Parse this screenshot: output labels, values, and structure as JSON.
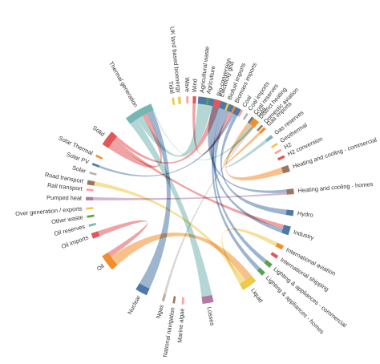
{
  "chart_data": {
    "type": "chord",
    "nodes": [
      {
        "name": "Electricity grid",
        "color": "#4e79a7",
        "angle": 17.0,
        "size": 40.0
      },
      {
        "name": "Gas",
        "color": "#f28e2b",
        "angle": 39.0,
        "size": 8.0
      },
      {
        "name": "Gas imports",
        "color": "#f28e2b",
        "angle": 46.0,
        "size": 2.5
      },
      {
        "name": "Gas reserves",
        "color": "#76b7b2",
        "angle": 52.0,
        "size": 3.0
      },
      {
        "name": "Geothermal",
        "color": "#edc948",
        "angle": 57.0,
        "size": 1.5
      },
      {
        "name": "H2",
        "color": "#ff9da7",
        "angle": 61.0,
        "size": 1.5
      },
      {
        "name": "H2 conversion",
        "color": "#e15759",
        "angle": 65.0,
        "size": 2.5
      },
      {
        "name": "Heating and cooling - commercial",
        "color": "#9c755f",
        "angle": 72.0,
        "size": 6.0
      },
      {
        "name": "Heating and cooling - homes",
        "color": "#9c755f",
        "angle": 85.0,
        "size": 5.0
      },
      {
        "name": "Hydro",
        "color": "#4e79a7",
        "angle": 97.0,
        "size": 5.0
      },
      {
        "name": "Industry",
        "color": "#4e79a7",
        "angle": 107.0,
        "size": 8.0
      },
      {
        "name": "International aviation",
        "color": "#f28e2b",
        "angle": 117.0,
        "size": 4.0
      },
      {
        "name": "International shipping",
        "color": "#e15759",
        "angle": 123.0,
        "size": 3.0
      },
      {
        "name": "Lighting & appliances - commercial",
        "color": "#59a14f",
        "angle": 129.0,
        "size": 4.0
      },
      {
        "name": "Lighting & appliances - homes",
        "color": "#59a14f",
        "angle": 135.0,
        "size": 4.0
      },
      {
        "name": "Liquid",
        "color": "#edc948",
        "angle": 145.0,
        "size": 14.0
      },
      {
        "name": "Losses",
        "color": "#b07aa1",
        "angle": 170.0,
        "size": 10.0
      },
      {
        "name": "Marine algae",
        "color": "#ff9da7",
        "angle": 184.0,
        "size": 1.0
      },
      {
        "name": "National navigation",
        "color": "#9c755f",
        "angle": 189.0,
        "size": 1.0
      },
      {
        "name": "Ngas",
        "color": "#bab0ac",
        "angle": 195.0,
        "size": 2.5
      },
      {
        "name": "Nuclear",
        "color": "#4e79a7",
        "angle": 208.0,
        "size": 11.0
      },
      {
        "name": "Oil",
        "color": "#f28e2b",
        "angle": 233.0,
        "size": 15.0
      },
      {
        "name": "Oil imports",
        "color": "#e15759",
        "angle": 250.0,
        "size": 5.0
      },
      {
        "name": "Oil reserves",
        "color": "#76b7b2",
        "angle": 256.0,
        "size": 2.0
      },
      {
        "name": "Other waste",
        "color": "#59a14f",
        "angle": 261.0,
        "size": 2.0
      },
      {
        "name": "Over generation / exports",
        "color": "#edc948",
        "angle": 265.5,
        "size": 1.5
      },
      {
        "name": "Pumped heat",
        "color": "#b07aa1",
        "angle": 271.0,
        "size": 3.0
      },
      {
        "name": "Rail transport",
        "color": "#ff9da7",
        "angle": 276.0,
        "size": 1.0
      },
      {
        "name": "Road transport",
        "color": "#9c755f",
        "angle": 280.0,
        "size": 4.0
      },
      {
        "name": "Solar",
        "color": "#bab0ac",
        "angle": 285.5,
        "size": 1.0
      },
      {
        "name": "Solar PV",
        "color": "#4e79a7",
        "angle": 290.5,
        "size": 2.0
      },
      {
        "name": "Solar Thermal",
        "color": "#f28e2b",
        "angle": 295.5,
        "size": 1.0
      },
      {
        "name": "Solid",
        "color": "#e15759",
        "angle": 307.0,
        "size": 14.0
      },
      {
        "name": "Thermal generation",
        "color": "#76b7b2",
        "angle": 330.0,
        "size": 26.0
      },
      {
        "name": "Tidal",
        "color": "#edc948",
        "angle": 350.5,
        "size": 1.0
      },
      {
        "name": "UK land based bioenergy",
        "color": "#edc948",
        "angle": 354.0,
        "size": 2.5
      },
      {
        "name": "Wave",
        "color": "#ff9da7",
        "angle": 358.5,
        "size": 1.0
      },
      {
        "name": "Wind",
        "color": "#e15759",
        "angle": 2.5,
        "size": 3.0
      },
      {
        "name": "Agricultural waste",
        "color": "#4e79a7",
        "angle": 6.5,
        "size": 1.5
      },
      {
        "name": "Agriculture",
        "color": "#59a14f",
        "angle": 10.0,
        "size": 1.0
      },
      {
        "name": "Bio-conversion",
        "color": "#e15759",
        "angle": 15.5,
        "size": 6.0
      },
      {
        "name": "Biofuel imports",
        "color": "#edc948",
        "angle": 21.5,
        "size": 1.0
      },
      {
        "name": "Biomass imports",
        "color": "#f28e2b",
        "angle": 25.5,
        "size": 1.0
      },
      {
        "name": "Coal",
        "color": "#ff9da7",
        "angle": 30.0,
        "size": 1.0
      },
      {
        "name": "Coal imports",
        "color": "#bab0ac",
        "angle": 33.5,
        "size": 1.5
      },
      {
        "name": "Coal reserves",
        "color": "#4e79a7",
        "angle": 37.0,
        "size": 1.0
      },
      {
        "name": "District heating",
        "color": "#f28e2b",
        "angle": 40.5,
        "size": 1.5
      },
      {
        "name": "Domestic aviation",
        "color": "#9c755f",
        "angle": 44.0,
        "size": 1.5
      }
    ],
    "links": [
      {
        "source": "Thermal generation",
        "target": "Losses",
        "value": 10
      },
      {
        "source": "Thermal generation",
        "target": "Electricity grid",
        "value": 8
      },
      {
        "source": "Solid",
        "target": "Thermal generation",
        "value": 6
      },
      {
        "source": "Solid",
        "target": "Industry",
        "value": 3
      },
      {
        "source": "Oil",
        "target": "Liquid",
        "value": 8
      },
      {
        "source": "Oil imports",
        "target": "Oil",
        "value": 4
      },
      {
        "source": "Nuclear",
        "target": "Thermal generation",
        "value": 8
      },
      {
        "source": "Liquid",
        "target": "Road transport",
        "value": 5
      },
      {
        "source": "Liquid",
        "target": "International aviation",
        "value": 3
      },
      {
        "source": "Electricity grid",
        "target": "Heating and cooling - homes",
        "value": 3
      },
      {
        "source": "Electricity grid",
        "target": "Industry",
        "value": 3
      },
      {
        "source": "Electricity grid",
        "target": "Lighting & appliances - homes",
        "value": 2
      },
      {
        "source": "Electricity grid",
        "target": "Lighting & appliances - commercial",
        "value": 2
      },
      {
        "source": "Gas",
        "target": "Heating and cooling - commercial",
        "value": 3
      },
      {
        "source": "Gas reserves",
        "target": "Gas",
        "value": 2
      },
      {
        "source": "Gas imports",
        "target": "Gas",
        "value": 2
      },
      {
        "source": "Bio-conversion",
        "target": "Solid",
        "value": 3
      },
      {
        "source": "Wind",
        "target": "Electricity grid",
        "value": 2
      },
      {
        "source": "Solar PV",
        "target": "Electricity grid",
        "value": 1.5
      },
      {
        "source": "Hydro",
        "target": "Electricity grid",
        "value": 2
      },
      {
        "source": "Pumped heat",
        "target": "Heating and cooling - homes",
        "value": 2
      },
      {
        "source": "Ngas",
        "target": "Gas",
        "value": 1.5
      },
      {
        "source": "Thermal generation",
        "target": "District heating",
        "value": 1
      }
    ]
  }
}
